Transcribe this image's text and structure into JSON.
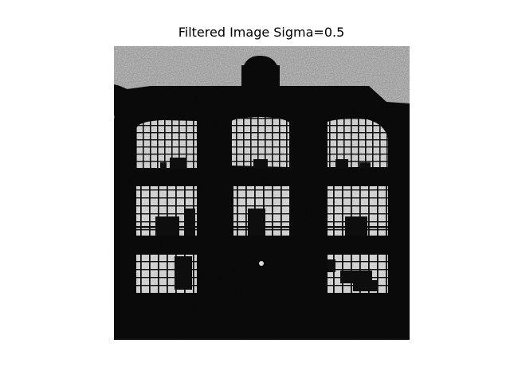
{
  "figure": {
    "title": "Filtered Image Sigma=0.5"
  },
  "image": {
    "colormap": "gray",
    "axis": "off"
  }
}
